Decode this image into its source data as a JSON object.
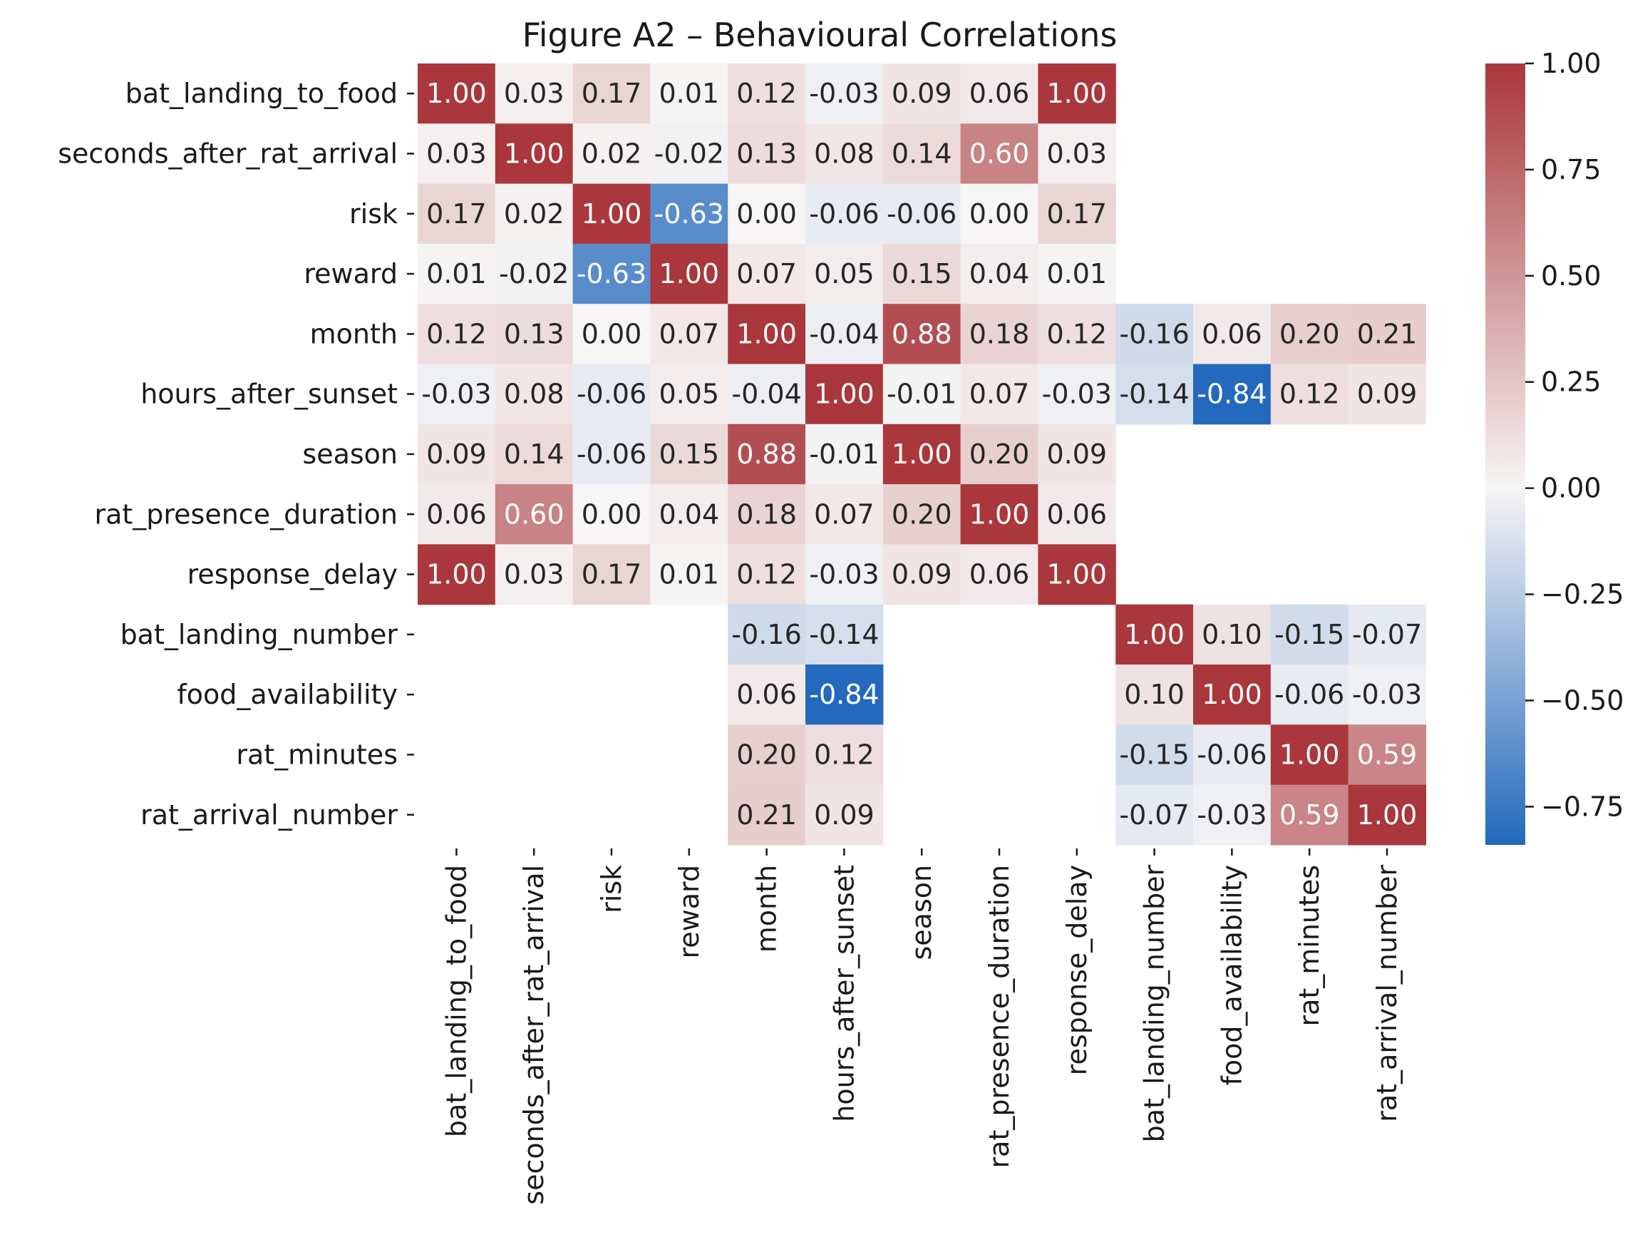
{
  "chart_data": {
    "type": "heatmap",
    "title": "Figure A2 – Behavioural Correlations",
    "xlabel": "",
    "ylabel": "",
    "variables": [
      "bat_landing_to_food",
      "seconds_after_rat_arrival",
      "risk",
      "reward",
      "month",
      "hours_after_sunset",
      "season",
      "rat_presence_duration",
      "response_delay",
      "bat_landing_number",
      "food_availability",
      "rat_minutes",
      "rat_arrival_number"
    ],
    "matrix": [
      [
        1.0,
        0.03,
        0.17,
        0.01,
        0.12,
        -0.03,
        0.09,
        0.06,
        1.0,
        null,
        null,
        null,
        null
      ],
      [
        0.03,
        1.0,
        0.02,
        -0.02,
        0.13,
        0.08,
        0.14,
        0.6,
        0.03,
        null,
        null,
        null,
        null
      ],
      [
        0.17,
        0.02,
        1.0,
        -0.63,
        0.0,
        -0.06,
        -0.06,
        0.0,
        0.17,
        null,
        null,
        null,
        null
      ],
      [
        0.01,
        -0.02,
        -0.63,
        1.0,
        0.07,
        0.05,
        0.15,
        0.04,
        0.01,
        null,
        null,
        null,
        null
      ],
      [
        0.12,
        0.13,
        0.0,
        0.07,
        1.0,
        -0.04,
        0.88,
        0.18,
        0.12,
        -0.16,
        0.06,
        0.2,
        0.21
      ],
      [
        -0.03,
        0.08,
        -0.06,
        0.05,
        -0.04,
        1.0,
        -0.01,
        0.07,
        -0.03,
        -0.14,
        -0.84,
        0.12,
        0.09
      ],
      [
        0.09,
        0.14,
        -0.06,
        0.15,
        0.88,
        -0.01,
        1.0,
        0.2,
        0.09,
        null,
        null,
        null,
        null
      ],
      [
        0.06,
        0.6,
        0.0,
        0.04,
        0.18,
        0.07,
        0.2,
        1.0,
        0.06,
        null,
        null,
        null,
        null
      ],
      [
        1.0,
        0.03,
        0.17,
        0.01,
        0.12,
        -0.03,
        0.09,
        0.06,
        1.0,
        null,
        null,
        null,
        null
      ],
      [
        null,
        null,
        null,
        null,
        -0.16,
        -0.14,
        null,
        null,
        null,
        1.0,
        0.1,
        -0.15,
        -0.07
      ],
      [
        null,
        null,
        null,
        null,
        0.06,
        -0.84,
        null,
        null,
        null,
        0.1,
        1.0,
        -0.06,
        -0.03
      ],
      [
        null,
        null,
        null,
        null,
        0.2,
        0.12,
        null,
        null,
        null,
        -0.15,
        -0.06,
        1.0,
        0.59
      ],
      [
        null,
        null,
        null,
        null,
        0.21,
        0.09,
        null,
        null,
        null,
        -0.07,
        -0.03,
        0.59,
        1.0
      ]
    ],
    "value_format": "2 decimals",
    "colormap": "vlag",
    "vmin": -0.84,
    "vmax": 1.0,
    "colorbar": {
      "ticks": [
        "1.00",
        "0.75",
        "0.50",
        "0.25",
        "0.00",
        "−0.25",
        "−0.50",
        "−0.75"
      ],
      "tick_values": [
        1.0,
        0.75,
        0.5,
        0.25,
        0.0,
        -0.25,
        -0.5,
        -0.75
      ],
      "low_color": "#2369bd",
      "mid_color": "#f7f5f5",
      "high_color": "#a9373b"
    },
    "grid": false
  }
}
